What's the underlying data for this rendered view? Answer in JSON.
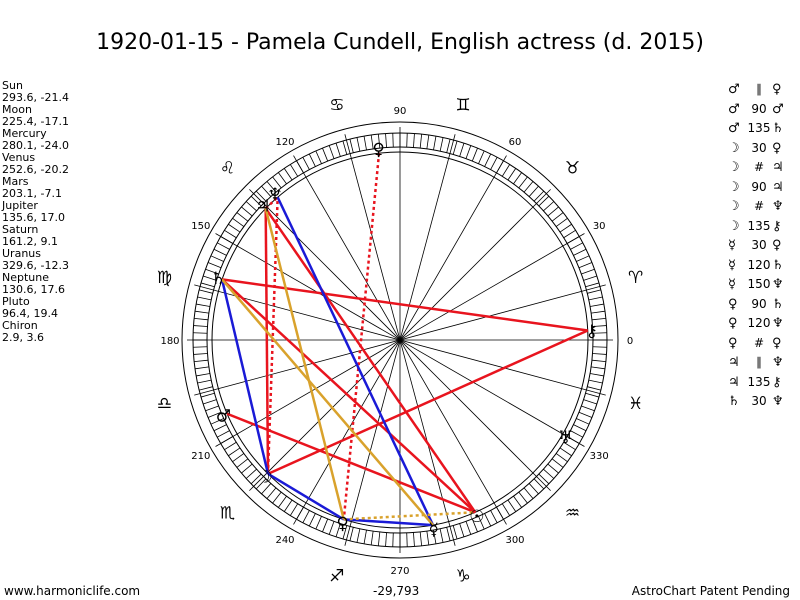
{
  "title": "1920-01-15 - Pamela Cundell, English actress (d. 2015)",
  "positions": [
    {
      "name": "Sun",
      "coords": "293.6, -21.4"
    },
    {
      "name": "Moon",
      "coords": "225.4, -17.1"
    },
    {
      "name": "Mercury",
      "coords": "280.1, -24.0"
    },
    {
      "name": "Venus",
      "coords": "252.6, -20.2"
    },
    {
      "name": "Mars",
      "coords": "203.1, -7.1"
    },
    {
      "name": "Jupiter",
      "coords": "135.6, 17.0"
    },
    {
      "name": "Saturn",
      "coords": "161.2, 9.1"
    },
    {
      "name": "Uranus",
      "coords": "329.6, -12.3"
    },
    {
      "name": "Neptune",
      "coords": "130.6, 17.6"
    },
    {
      "name": "Pluto",
      "coords": "96.4, 19.4"
    },
    {
      "name": "Chiron",
      "coords": "2.9, 3.6"
    }
  ],
  "aspects": [
    {
      "p1": "♂",
      "asp": "∥",
      "p2": "♀"
    },
    {
      "p1": "♂",
      "asp": "90",
      "p2": "♂"
    },
    {
      "p1": "♂",
      "asp": "135",
      "p2": "♄"
    },
    {
      "p1": "☽",
      "asp": "30",
      "p2": "♀"
    },
    {
      "p1": "☽",
      "asp": "#",
      "p2": "♃"
    },
    {
      "p1": "☽",
      "asp": "90",
      "p2": "♃"
    },
    {
      "p1": "☽",
      "asp": "#",
      "p2": "♆"
    },
    {
      "p1": "☽",
      "asp": "135",
      "p2": "⚷"
    },
    {
      "p1": "☿",
      "asp": "30",
      "p2": "♀"
    },
    {
      "p1": "☿",
      "asp": "120",
      "p2": "♄"
    },
    {
      "p1": "☿",
      "asp": "150",
      "p2": "♆"
    },
    {
      "p1": "♀",
      "asp": "90",
      "p2": "♄"
    },
    {
      "p1": "♀",
      "asp": "120",
      "p2": "♆"
    },
    {
      "p1": "♀",
      "asp": "#",
      "p2": "♀"
    },
    {
      "p1": "♃",
      "asp": "∥",
      "p2": "♆"
    },
    {
      "p1": "♃",
      "asp": "135",
      "p2": "⚷"
    },
    {
      "p1": "♄",
      "asp": "30",
      "p2": "♆"
    }
  ],
  "degree_labels": [
    {
      "deg": 0,
      "text": "0"
    },
    {
      "deg": 30,
      "text": "30"
    },
    {
      "deg": 60,
      "text": "60"
    },
    {
      "deg": 90,
      "text": "90"
    },
    {
      "deg": 120,
      "text": "120"
    },
    {
      "deg": 150,
      "text": "150"
    },
    {
      "deg": 180,
      "text": "180"
    },
    {
      "deg": 210,
      "text": "210"
    },
    {
      "deg": 240,
      "text": "240"
    },
    {
      "deg": 270,
      "text": "270"
    },
    {
      "deg": 300,
      "text": "300"
    },
    {
      "deg": 330,
      "text": "330"
    }
  ],
  "signs": [
    {
      "deg": 15,
      "glyph": "♈"
    },
    {
      "deg": 45,
      "glyph": "♉"
    },
    {
      "deg": 75,
      "glyph": "♊"
    },
    {
      "deg": 105,
      "glyph": "♋"
    },
    {
      "deg": 135,
      "glyph": "♌"
    },
    {
      "deg": 165,
      "glyph": "♍"
    },
    {
      "deg": 195,
      "glyph": "♎"
    },
    {
      "deg": 225,
      "glyph": "♏"
    },
    {
      "deg": 255,
      "glyph": "♐"
    },
    {
      "deg": 285,
      "glyph": "♑"
    },
    {
      "deg": 315,
      "glyph": "♒"
    },
    {
      "deg": 345,
      "glyph": "♓"
    }
  ],
  "planets": [
    {
      "name": "Sun",
      "glyph": "☉",
      "lon": 293.6,
      "color": "#000000"
    },
    {
      "name": "Moon",
      "glyph": "☽",
      "lon": 225.4,
      "color": "#000000"
    },
    {
      "name": "Mercury",
      "glyph": "☿",
      "lon": 280.1,
      "color": "#000000"
    },
    {
      "name": "Venus",
      "glyph": "♀",
      "lon": 252.6,
      "color": "#000000"
    },
    {
      "name": "Mars",
      "glyph": "♂",
      "lon": 203.1,
      "color": "#000000"
    },
    {
      "name": "Jupiter",
      "glyph": "♃",
      "lon": 135.6,
      "color": "#000000"
    },
    {
      "name": "Saturn",
      "glyph": "♄",
      "lon": 161.2,
      "color": "#000000"
    },
    {
      "name": "Uranus",
      "glyph": "♅",
      "lon": 329.6,
      "color": "#000000"
    },
    {
      "name": "Neptune",
      "glyph": "♆",
      "lon": 130.6,
      "color": "#000000"
    },
    {
      "name": "Pluto",
      "glyph": "♀",
      "lon": 96.4,
      "color": "#000000"
    },
    {
      "name": "Chiron",
      "glyph": "⚷",
      "lon": 2.9,
      "color": "#000000"
    }
  ],
  "aspect_lines": [
    {
      "a": 2.9,
      "b": 161.2,
      "color": "#e8141e",
      "style": "solid"
    },
    {
      "a": 2.9,
      "b": 225.4,
      "color": "#e8141e",
      "style": "solid"
    },
    {
      "a": 135.6,
      "b": 293.6,
      "color": "#e8141e",
      "style": "solid"
    },
    {
      "a": 203.1,
      "b": 293.6,
      "color": "#e8141e",
      "style": "solid"
    },
    {
      "a": 161.2,
      "b": 293.6,
      "color": "#e8141e",
      "style": "solid"
    },
    {
      "a": 225.4,
      "b": 135.6,
      "color": "#e8141e",
      "style": "solid"
    },
    {
      "a": 225.4,
      "b": 130.6,
      "color": "#e8141e",
      "style": "dotted"
    },
    {
      "a": 96.4,
      "b": 252.6,
      "color": "#e8141e",
      "style": "dotted"
    },
    {
      "a": 135.6,
      "b": 130.6,
      "color": "#e8141e",
      "style": "dotted"
    },
    {
      "a": 130.6,
      "b": 280.1,
      "color": "#1a1ad6",
      "style": "solid"
    },
    {
      "a": 161.2,
      "b": 225.4,
      "color": "#1a1ad6",
      "style": "solid"
    },
    {
      "a": 225.4,
      "b": 252.6,
      "color": "#1a1ad6",
      "style": "solid"
    },
    {
      "a": 252.6,
      "b": 280.1,
      "color": "#1a1ad6",
      "style": "solid"
    },
    {
      "a": 135.6,
      "b": 252.6,
      "color": "#d9a22c",
      "style": "solid"
    },
    {
      "a": 161.2,
      "b": 280.1,
      "color": "#d9a22c",
      "style": "solid"
    },
    {
      "a": 252.6,
      "b": 293.6,
      "color": "#d9a22c",
      "style": "dotted"
    }
  ],
  "footer": {
    "left": "www.harmoniclife.com",
    "center": "-29,793",
    "right": "AstroChart Patent Pending"
  }
}
